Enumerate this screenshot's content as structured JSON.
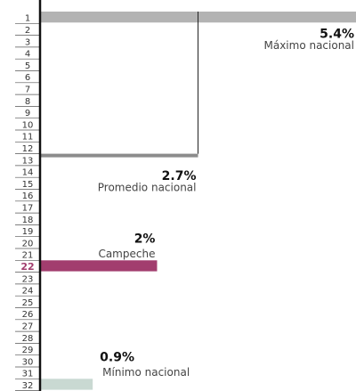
{
  "chart_data": {
    "type": "bar",
    "categories": [
      1,
      2,
      3,
      4,
      5,
      6,
      7,
      8,
      9,
      10,
      11,
      12,
      13,
      14,
      15,
      16,
      17,
      18,
      19,
      20,
      21,
      22,
      23,
      24,
      25,
      26,
      27,
      28,
      29,
      30,
      31,
      32
    ],
    "values": [
      5.4,
      null,
      null,
      null,
      null,
      null,
      null,
      null,
      null,
      null,
      null,
      null,
      2.7,
      null,
      null,
      null,
      null,
      null,
      null,
      null,
      null,
      2,
      null,
      null,
      null,
      null,
      null,
      null,
      null,
      null,
      null,
      0.9
    ],
    "value_labels": [
      "5.4%",
      null,
      null,
      null,
      null,
      null,
      null,
      null,
      null,
      null,
      null,
      null,
      "2.7%",
      null,
      null,
      null,
      null,
      null,
      null,
      null,
      null,
      "2%",
      null,
      null,
      null,
      null,
      null,
      null,
      null,
      null,
      null,
      "0.9%"
    ],
    "labels": [
      "Máximo nacional",
      null,
      null,
      null,
      null,
      null,
      null,
      null,
      null,
      null,
      null,
      null,
      "Promedio nacional",
      null,
      null,
      null,
      null,
      null,
      null,
      null,
      null,
      "Campeche",
      null,
      null,
      null,
      null,
      null,
      null,
      null,
      null,
      null,
      "Mínimo nacional"
    ],
    "colors": [
      "#b3b3b3",
      null,
      null,
      null,
      null,
      null,
      null,
      null,
      null,
      null,
      null,
      null,
      "#8c8c8c",
      null,
      null,
      null,
      null,
      null,
      null,
      null,
      null,
      "#a23d6e",
      null,
      null,
      null,
      null,
      null,
      null,
      null,
      null,
      null,
      "#c9d9d2"
    ],
    "highlight_color": "#a23d6e",
    "xlim": [
      0,
      5.4
    ]
  }
}
